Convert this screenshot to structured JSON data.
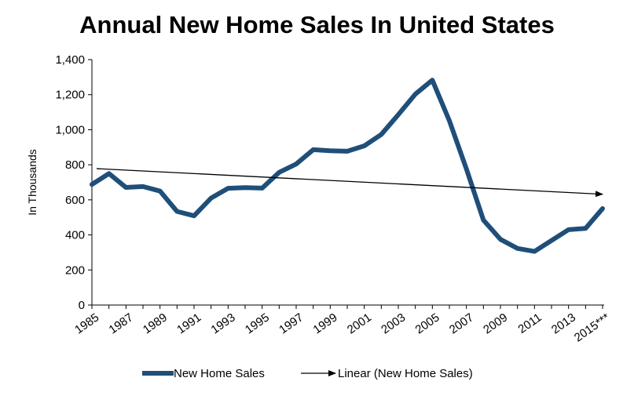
{
  "chart_data": {
    "type": "line",
    "title": "Annual New Home Sales In United States",
    "ylabel": "In Thousands",
    "xlabel": "",
    "ylim": [
      0,
      1400
    ],
    "yticks": [
      0,
      200,
      400,
      600,
      800,
      1000,
      1200,
      1400
    ],
    "ytick_labels": [
      "0",
      "200",
      "400",
      "600",
      "800",
      "1,000",
      "1,200",
      "1,400"
    ],
    "x": [
      1985,
      1986,
      1987,
      1988,
      1989,
      1990,
      1991,
      1992,
      1993,
      1994,
      1995,
      1996,
      1997,
      1998,
      1999,
      2000,
      2001,
      2002,
      2003,
      2004,
      2005,
      2006,
      2007,
      2008,
      2009,
      2010,
      2011,
      2012,
      2013,
      2014,
      2015
    ],
    "xtick_labels": [
      "1985",
      "1987",
      "1989",
      "1991",
      "1993",
      "1995",
      "1997",
      "1999",
      "2001",
      "2003",
      "2005",
      "2007",
      "2009",
      "2011",
      "2013",
      "2015***"
    ],
    "series": [
      {
        "name": "New Home Sales",
        "color": "#1f4e79",
        "values": [
          688,
          750,
          671,
          676,
          650,
          534,
          509,
          610,
          666,
          670,
          667,
          757,
          804,
          886,
          880,
          877,
          908,
          973,
          1086,
          1203,
          1283,
          1051,
          776,
          485,
          375,
          323,
          306,
          368,
          430,
          437,
          550
        ]
      }
    ],
    "trendline": {
      "name": "Linear (New Home Sales)",
      "color": "#000000",
      "start": 778,
      "end": 632
    },
    "legend_position": "bottom",
    "grid": false
  }
}
